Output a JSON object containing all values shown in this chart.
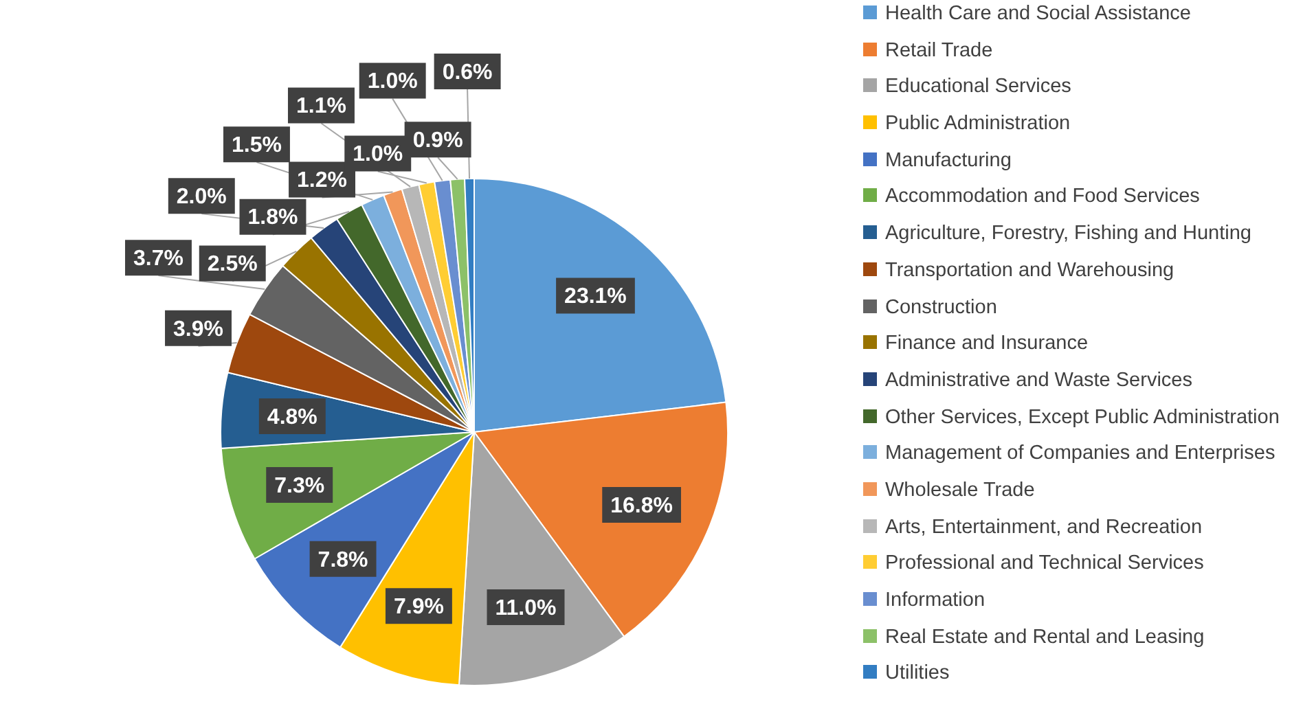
{
  "chart_data": {
    "type": "pie",
    "categories": [
      "Health Care and Social Assistance",
      "Retail Trade",
      "Educational Services",
      "Public Administration",
      "Manufacturing",
      "Accommodation and Food Services",
      "Agriculture, Forestry, Fishing and Hunting",
      "Transportation and Warehousing",
      "Construction",
      "Finance and Insurance",
      "Administrative and Waste Services",
      "Other Services, Except Public Administration",
      "Management of Companies and Enterprises",
      "Wholesale Trade",
      "Arts, Entertainment, and Recreation",
      "Professional and Technical Services",
      "Information",
      "Real Estate and Rental and Leasing",
      "Utilities"
    ],
    "values": [
      23.1,
      16.8,
      11.0,
      7.9,
      7.8,
      7.3,
      4.8,
      3.9,
      3.7,
      2.5,
      2.0,
      1.8,
      1.5,
      1.2,
      1.1,
      1.0,
      1.0,
      0.9,
      0.6
    ],
    "value_labels": [
      "23.1%",
      "16.8%",
      "11.0%",
      "7.9%",
      "7.8%",
      "7.3%",
      "4.8%",
      "3.9%",
      "3.7%",
      "2.5%",
      "2.0%",
      "1.8%",
      "1.5%",
      "1.2%",
      "1.1%",
      "1.0%",
      "1.0%",
      "0.9%",
      "0.6%"
    ],
    "colors": [
      "#5b9bd5",
      "#ed7d31",
      "#a5a5a5",
      "#ffc000",
      "#4472c4",
      "#70ad47",
      "#255e91",
      "#9e480e",
      "#636363",
      "#997300",
      "#264478",
      "#43682b",
      "#7cafdd",
      "#f1975a",
      "#b7b7b7",
      "#ffcd33",
      "#698ed0",
      "#8cc168",
      "#327dc2"
    ],
    "legend": "right"
  }
}
